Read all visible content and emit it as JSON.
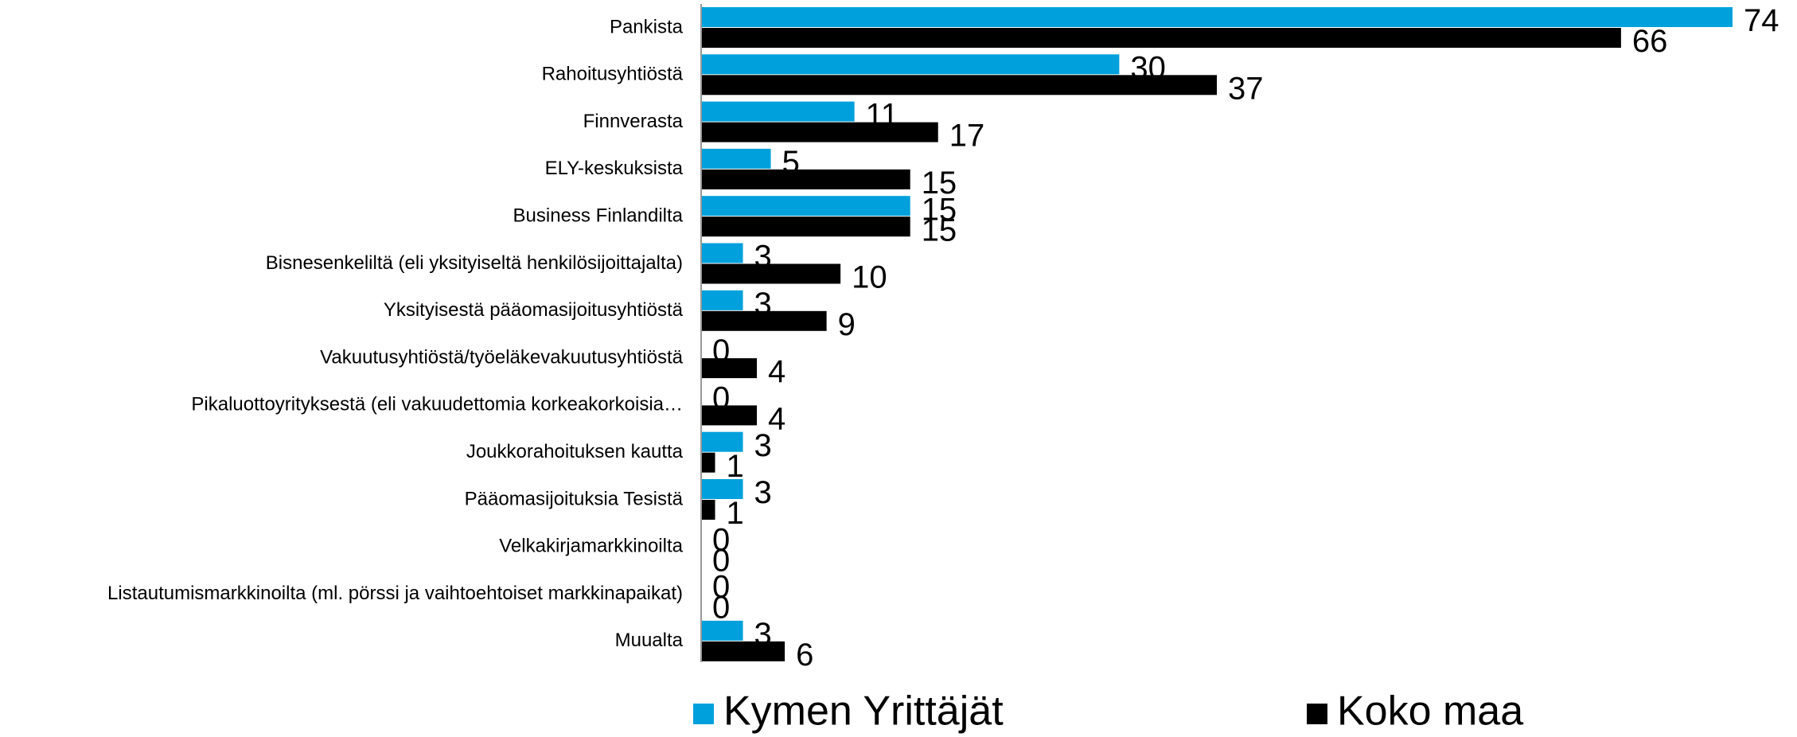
{
  "chart_data": {
    "type": "bar",
    "orientation": "horizontal",
    "categories": [
      "Pankista",
      "Rahoitusyhtiöstä",
      "Finnverasta",
      "ELY-keskuksista",
      "Business Finlandilta",
      "Bisnesenkeliltä (eli yksityiseltä henkilösijoittajalta)",
      "Yksityisestä pääomasijoitusyhtiöstä",
      "Vakuutusyhtiöstä/työeläkevakuutusyhtiöstä",
      "Pikaluottoyrityksestä (eli vakuudettomia korkeakorkoisia…",
      "Joukkorahoituksen kautta",
      "Pääomasijoituksia Tesistä",
      "Velkakirjamarkkinoilta",
      "Listautumismarkkinoilta (ml. pörssi ja vaihtoehtoiset markkinapaikat)",
      "Muualta"
    ],
    "series": [
      {
        "name": "Kymen Yrittäjät",
        "color": "#00a0dc",
        "values": [
          74,
          30,
          11,
          5,
          15,
          3,
          3,
          0,
          0,
          3,
          3,
          0,
          0,
          3
        ]
      },
      {
        "name": "Koko maa",
        "color": "#000000",
        "values": [
          66,
          37,
          17,
          15,
          15,
          10,
          9,
          4,
          4,
          1,
          1,
          0,
          0,
          6
        ]
      }
    ],
    "legend": "bottom"
  }
}
